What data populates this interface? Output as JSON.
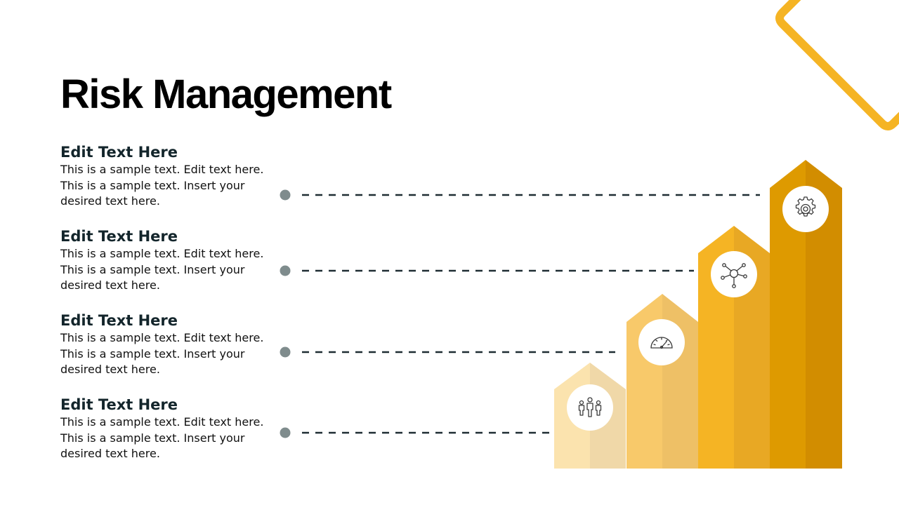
{
  "slide": {
    "title": "Risk Management",
    "items": [
      {
        "heading": "Edit Text Here",
        "lines": [
          "This is a sample text. Edit text here.",
          "This is a sample text. Insert your",
          "desired text here."
        ]
      },
      {
        "heading": "Edit Text Here",
        "lines": [
          "This is a sample text. Edit text here.",
          "This is a sample text. Insert your",
          "desired text here."
        ]
      },
      {
        "heading": "Edit Text Here",
        "lines": [
          "This is a sample text. Edit text here.",
          "This is a sample text. Insert your",
          "desired text here."
        ]
      },
      {
        "heading": "Edit Text Here",
        "lines": [
          "This is a sample text. Edit text here.",
          "This is a sample text. Insert your",
          "desired text here."
        ]
      }
    ],
    "steps": [
      {
        "icon": "gear-icon",
        "light": "#DE9A00",
        "dark": "#D28D00"
      },
      {
        "icon": "network-icon",
        "light": "#F5B424",
        "dark": "#E8A824"
      },
      {
        "icon": "speedometer-icon",
        "light": "#F8C96A",
        "dark": "#EEC066"
      },
      {
        "icon": "team-icon",
        "light": "#FBE3AE",
        "dark": "#F0D8A8"
      }
    ],
    "colors": {
      "accent": "#F5B424",
      "connector_dot": "#7F8C8D",
      "connector_line": "#1F2D33",
      "title": "#000000",
      "heading": "#13252B"
    }
  }
}
